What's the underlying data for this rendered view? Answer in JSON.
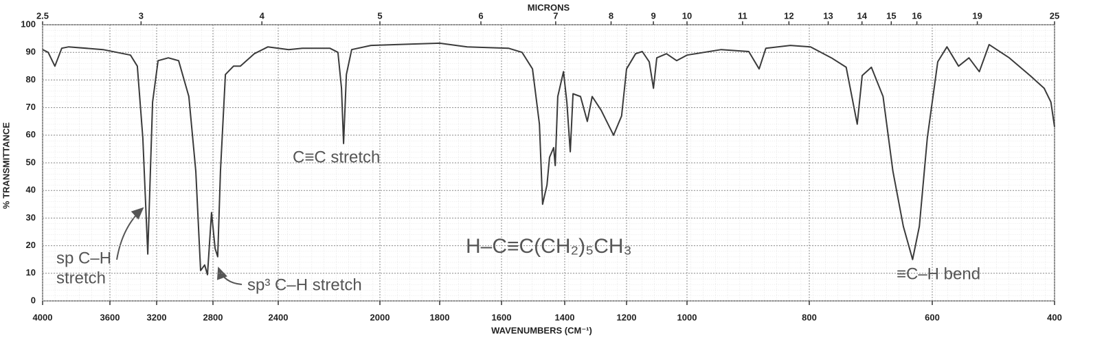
{
  "chart_data": {
    "type": "line",
    "xlabel": "WAVENUMBERS (CM⁻¹)",
    "ylabel": "% TRANSMITTANCE",
    "x2label": "MICRONS",
    "xlim": [
      4000,
      400
    ],
    "ylim": [
      0,
      100
    ],
    "xticks": [
      4000,
      3600,
      3200,
      2800,
      2400,
      2000,
      1800,
      1600,
      1400,
      1200,
      1000,
      800,
      600,
      400
    ],
    "yticks": [
      0,
      10,
      20,
      30,
      40,
      50,
      60,
      70,
      80,
      90,
      100
    ],
    "x2ticks": [
      2.5,
      3,
      4,
      5,
      6,
      7,
      8,
      9,
      10,
      11,
      12,
      13,
      14,
      15,
      16,
      19,
      25
    ],
    "grid": true,
    "color": "#3a3a3a",
    "x": [
      4000,
      3967,
      3927,
      3886,
      3845,
      3641,
      3424,
      3365,
      3318,
      3276,
      3235,
      3190,
      3117,
      3044,
      2971,
      2922,
      2888,
      2859,
      2839,
      2810,
      2787,
      2771,
      2754,
      2724,
      2674,
      2632,
      2547,
      2463,
      2359,
      2305,
      2197,
      2165,
      2151,
      2143,
      2132,
      2111,
      2035,
      1892,
      1800,
      1711,
      1578,
      1535,
      1502,
      1480,
      1470,
      1456,
      1448,
      1435,
      1430,
      1422,
      1404,
      1393,
      1382,
      1373,
      1349,
      1327,
      1311,
      1282,
      1242,
      1216,
      1200,
      1170,
      1148,
      1125,
      1111,
      1100,
      1068,
      1034,
      1000,
      944,
      899,
      882,
      871,
      831,
      798,
      764,
      740,
      722,
      714,
      699,
      680,
      664,
      647,
      632,
      621,
      608,
      591,
      576,
      557,
      540,
      523,
      507,
      474,
      440,
      417,
      406,
      400
    ],
    "values": [
      91,
      90,
      85,
      91.5,
      92,
      91,
      89,
      85,
      59,
      17,
      72,
      87,
      88,
      87,
      74,
      47,
      11,
      13,
      9.5,
      32,
      19,
      16,
      47,
      82,
      85,
      85,
      89.5,
      92,
      91,
      91.5,
      91.5,
      90,
      77,
      57,
      82,
      91,
      92.5,
      93,
      93.3,
      92,
      91.5,
      90,
      84,
      64,
      35,
      42,
      52,
      55.5,
      49,
      74,
      83,
      72,
      54,
      75,
      74,
      65,
      74,
      69,
      60,
      67,
      84,
      89.5,
      90.3,
      86.6,
      77,
      88,
      89.5,
      87,
      89,
      91,
      90.3,
      84,
      91.5,
      92.5,
      92,
      88,
      84.6,
      64,
      81.6,
      84.6,
      74,
      47,
      27,
      15,
      27,
      59,
      86.6,
      92,
      85,
      88,
      83,
      92.8,
      88,
      81.6,
      77,
      72,
      63
    ],
    "annotations": [
      [
        "sp C–H",
        "stretch"
      ],
      [
        "sp³ C–H stretch"
      ],
      [
        "C≡C stretch"
      ],
      [
        "≡C–H bend"
      ],
      [
        "H–C≡C(CH₂)₅CH₃"
      ]
    ]
  }
}
